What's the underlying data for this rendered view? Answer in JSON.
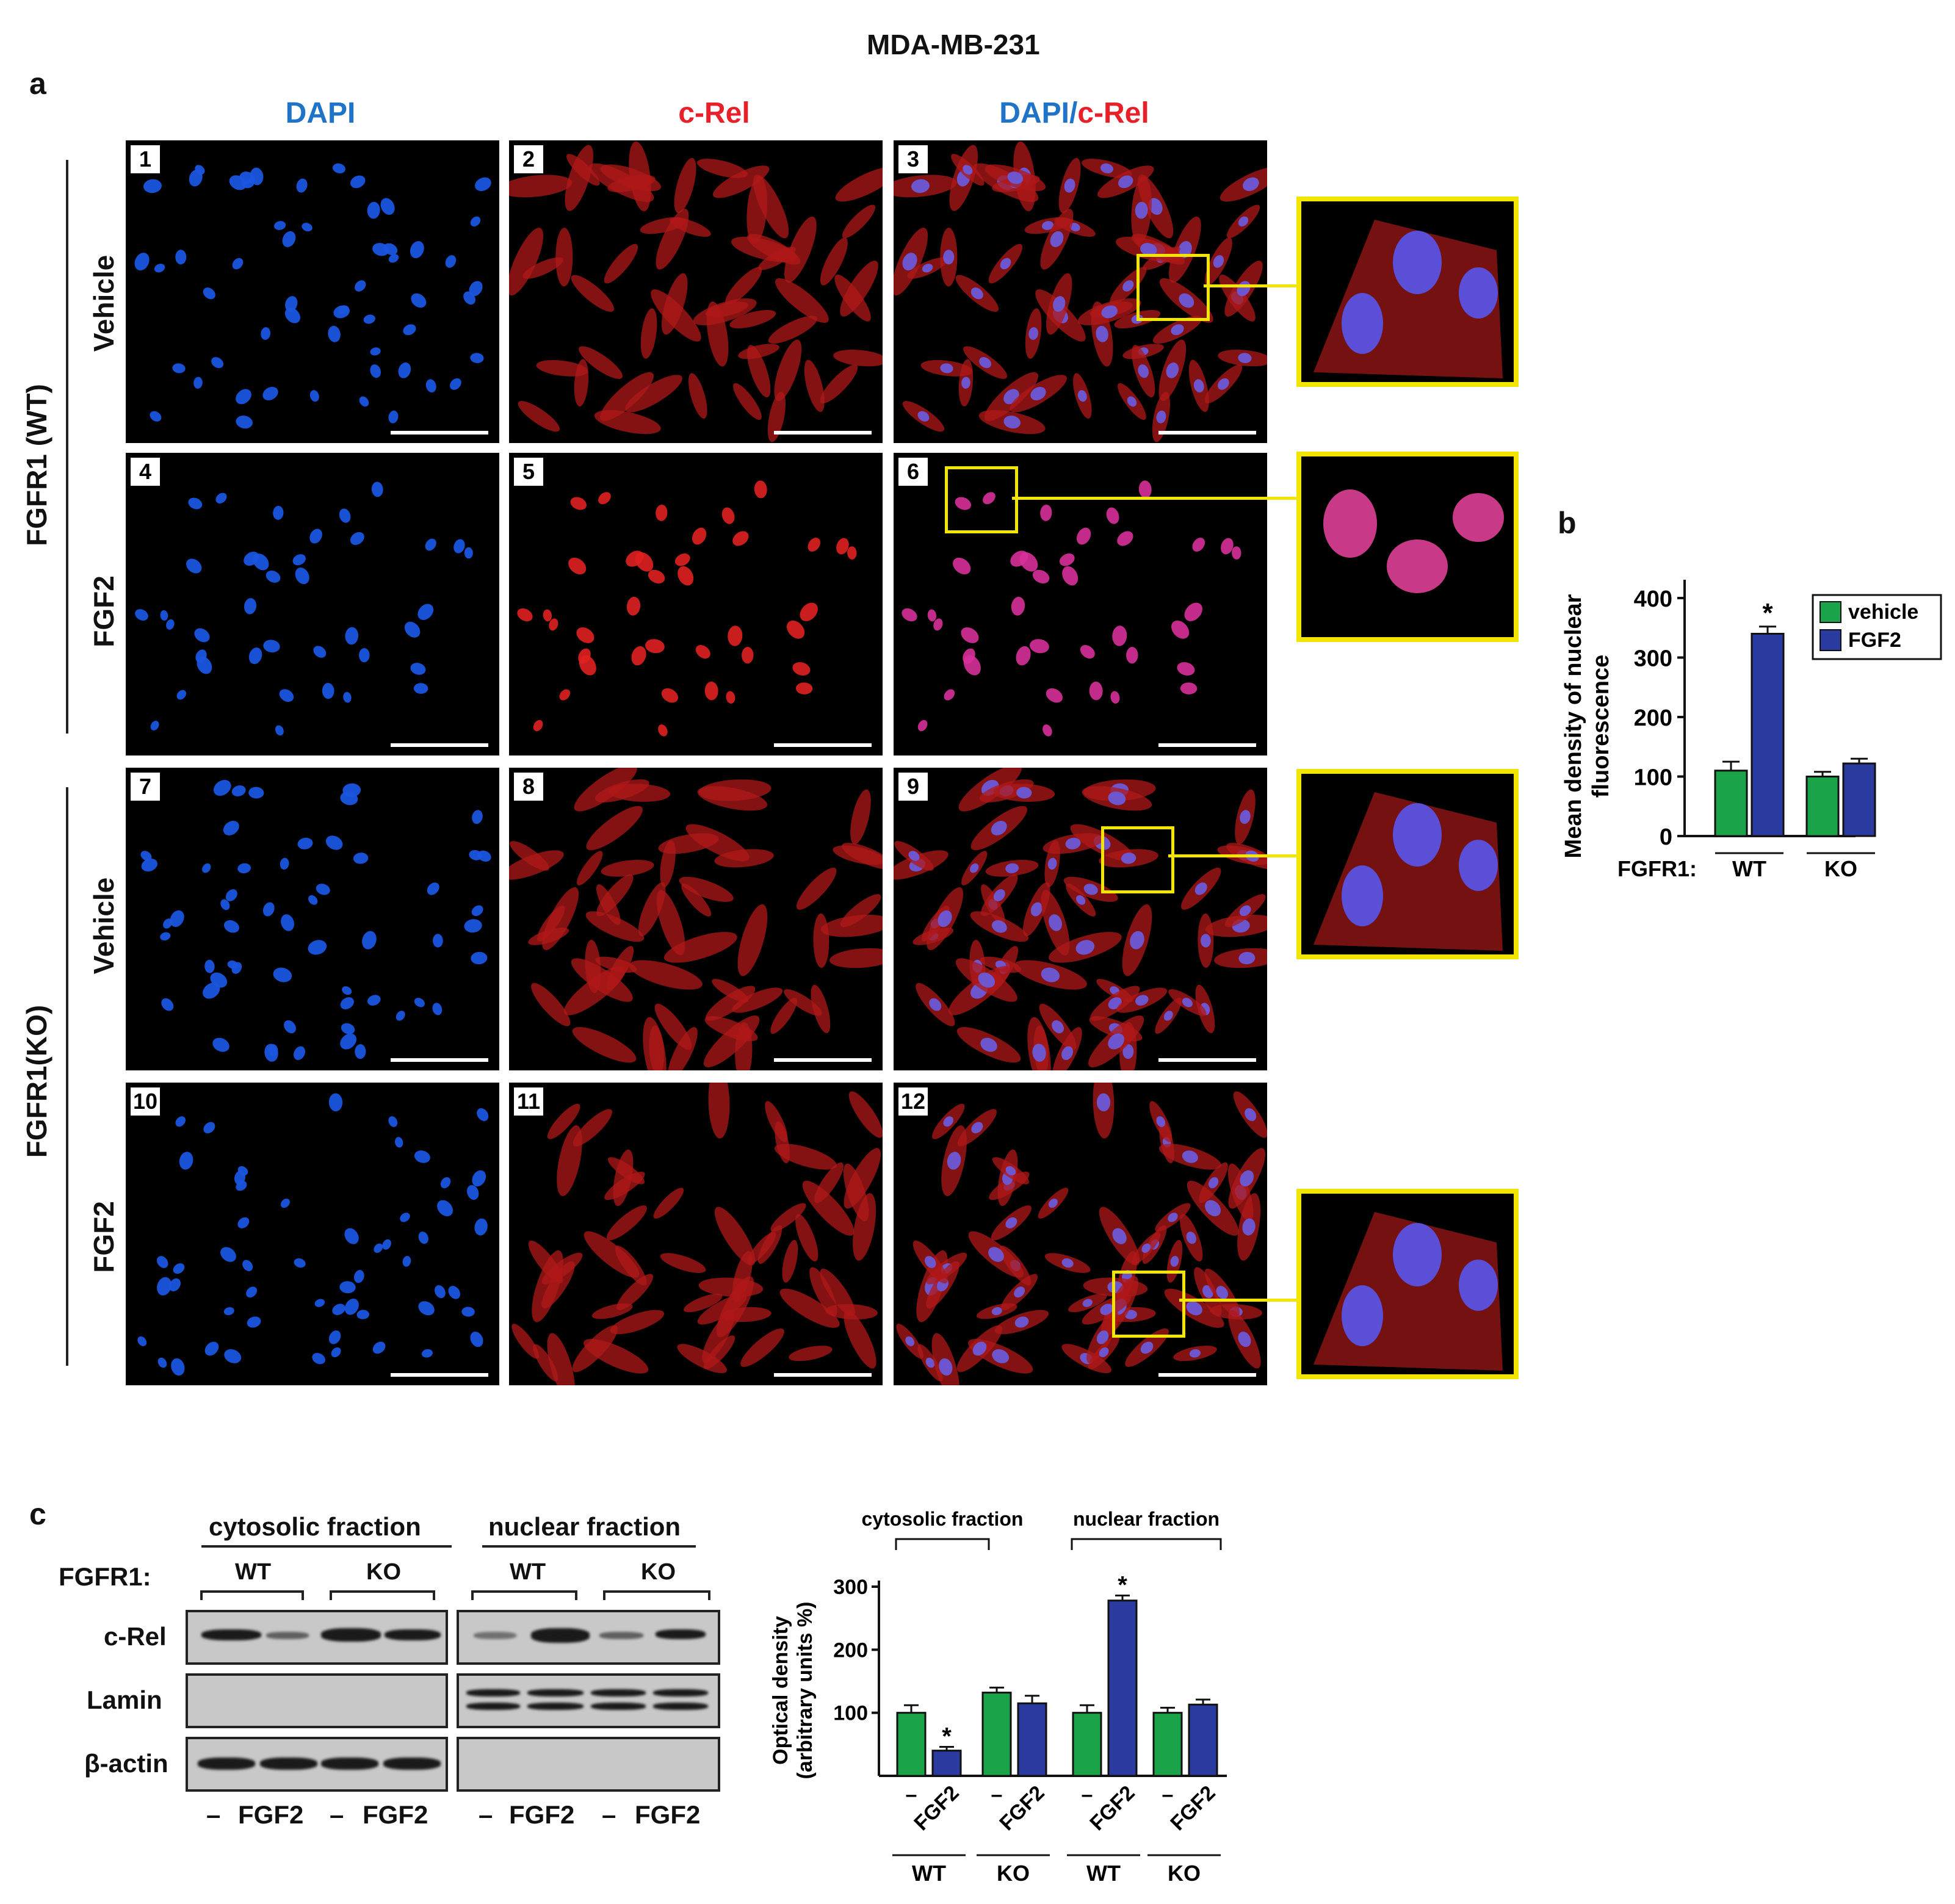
{
  "figure_title": "MDA-MB-231",
  "panel_letters": {
    "a": "a",
    "b": "b",
    "c": "c"
  },
  "column_headers": {
    "dapi": "DAPI",
    "crel": "c-Rel",
    "merge_dapi": "DAPI/",
    "merge_crel": "c-Rel"
  },
  "group_labels": {
    "wt": "FGFR1 (WT)",
    "ko": "FGFR1(KO)"
  },
  "row_labels": [
    "Vehicle",
    "FGF2",
    "Vehicle",
    "FGF2"
  ],
  "panel_numbers": [
    "1",
    "2",
    "3",
    "4",
    "5",
    "6",
    "7",
    "8",
    "9",
    "10",
    "11",
    "12"
  ],
  "colors": {
    "dapi": "#1f74c8",
    "crel": "#e8202a",
    "vehicle_bar": "#1aa349",
    "fgf2_bar": "#2b3a9e",
    "roi": "#f2e600"
  },
  "chart_data": [
    {
      "type": "bar",
      "panel": "b",
      "ylabel_line1": "Mean density of nuclear",
      "ylabel_line2": "fluorescence",
      "ylim": [
        0,
        400
      ],
      "yticks": [
        "0",
        "100",
        "200",
        "300",
        "400"
      ],
      "group_prefix": "FGFR1:",
      "categories": [
        "WT",
        "KO"
      ],
      "series": [
        {
          "name": "vehicle",
          "values": [
            110,
            100
          ],
          "errors": [
            15,
            8
          ]
        },
        {
          "name": "FGF2",
          "values": [
            340,
            122
          ],
          "errors": [
            12,
            8
          ]
        }
      ],
      "significance": [
        "*"
      ],
      "legend_position": "top-right"
    },
    {
      "type": "bar",
      "panel": "c",
      "ylabel_line1": "Optical density",
      "ylabel_line2": "(arbitrary units %)",
      "ylim": [
        0,
        300
      ],
      "yticks": [
        "100",
        "200",
        "300"
      ],
      "fraction_labels": [
        "cytosolic fraction",
        "nuclear fraction"
      ],
      "bar_labels": [
        "–",
        "FGF2",
        "–",
        "FGF2",
        "–",
        "FGF2",
        "–",
        "FGF2"
      ],
      "genotype_labels": [
        "WT",
        "KO",
        "WT",
        "KO"
      ],
      "values": [
        100,
        40,
        132,
        115,
        100,
        278,
        100,
        113
      ],
      "errors": [
        12,
        6,
        8,
        12,
        12,
        8,
        8,
        8
      ],
      "significance": [
        "*",
        "*"
      ]
    }
  ],
  "blot": {
    "fraction_labels": [
      "cytosolic fraction",
      "nuclear fraction"
    ],
    "fgfr1_label": "FGFR1:",
    "genotypes": [
      "WT",
      "KO",
      "WT",
      "KO"
    ],
    "rows": [
      "c-Rel",
      "Lamin",
      "β-actin"
    ],
    "lane_labels": [
      "–",
      "FGF2",
      "–",
      "FGF2",
      "–",
      "FGF2",
      "–",
      "FGF2"
    ]
  }
}
